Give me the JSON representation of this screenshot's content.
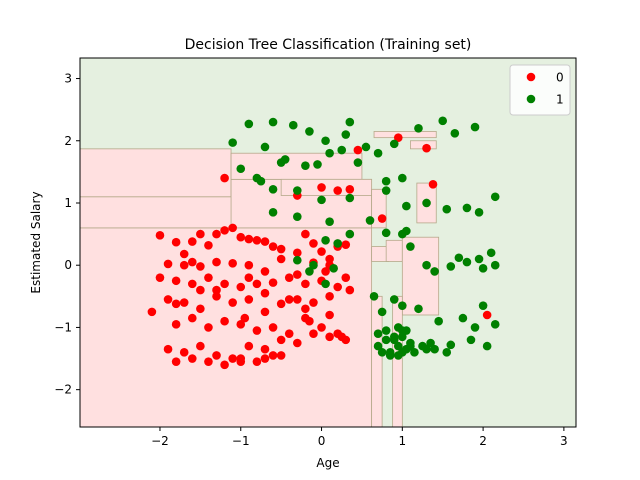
{
  "chart_data": {
    "type": "scatter",
    "title": "Decision Tree Classification (Training set)",
    "xlabel": "Age",
    "ylabel": "Estimated Salary",
    "xlim": [
      -2.99,
      3.15
    ],
    "ylim": [
      -2.6,
      3.33
    ],
    "xticks": [
      -2,
      -1,
      0,
      1,
      2,
      3
    ],
    "xtick_labels": [
      "−2",
      "−1",
      "0",
      "1",
      "2",
      "3"
    ],
    "yticks": [
      -2,
      -1,
      0,
      1,
      2,
      3
    ],
    "ytick_labels": [
      "−2",
      "−1",
      "0",
      "1",
      "2",
      "3"
    ],
    "grid": false,
    "legend_position": "top-right",
    "colors": {
      "class_0": "#ff0000",
      "class_1": "#008000",
      "region_0": "#ffe0e0",
      "region_1": "#e5f0e0",
      "boundary": "#b5a98a"
    },
    "regions_class0": [
      [
        -2.99,
        0.62,
        -2.6,
        0.6
      ],
      [
        -2.99,
        -1.1,
        0.6,
        1.1
      ],
      [
        -2.99,
        -1.12,
        1.1,
        1.87
      ],
      [
        -1.12,
        0.62,
        0.6,
        1.38
      ],
      [
        -1.12,
        0.5,
        1.38,
        1.8
      ],
      [
        -0.5,
        0.62,
        1.12,
        1.38
      ],
      [
        0.62,
        0.8,
        0.6,
        1.22
      ],
      [
        0.62,
        0.83,
        0.06,
        0.3
      ],
      [
        0.62,
        0.75,
        -2.6,
        -0.5
      ],
      [
        0.8,
        1.0,
        0.4,
        0.06
      ],
      [
        1.0,
        1.45,
        -0.8,
        0.45
      ],
      [
        0.88,
        1.0,
        -2.6,
        -0.5
      ],
      [
        1.18,
        1.42,
        0.68,
        1.32
      ],
      [
        1.1,
        1.42,
        1.87,
        2.0
      ],
      [
        0.65,
        1.42,
        2.05,
        2.15
      ]
    ],
    "series": [
      {
        "name": "0",
        "color": "#ff0000",
        "x": [
          -2.0,
          -1.8,
          -1.7,
          -1.6,
          -1.5,
          -1.4,
          -1.3,
          -1.2,
          -1.1,
          -1.0,
          -0.9,
          -0.8,
          -0.7,
          -0.6,
          -0.5,
          -0.3,
          -0.2,
          -0.1,
          0.0,
          0.1,
          0.2,
          0.3,
          -1.9,
          -1.7,
          -1.5,
          -1.3,
          -1.1,
          -0.9,
          -0.7,
          -0.5,
          -0.3,
          -0.1,
          0.1,
          0.3,
          -2.0,
          -1.8,
          -1.6,
          -1.4,
          -1.2,
          -1.0,
          -0.8,
          -0.6,
          -0.4,
          -0.2,
          0.0,
          0.2,
          -1.9,
          -1.7,
          -1.5,
          -1.3,
          -1.1,
          -0.9,
          -0.7,
          -0.5,
          -0.3,
          -0.1,
          0.1,
          -1.8,
          -1.6,
          -1.4,
          -1.2,
          -1.0,
          -0.8,
          -0.6,
          -0.4,
          -0.2,
          0.0,
          0.2,
          -1.9,
          -1.7,
          -1.5,
          -1.3,
          -1.1,
          -0.9,
          -0.7,
          -0.5,
          -1.8,
          -1.6,
          -1.4,
          -1.2,
          -1.0,
          -0.8,
          -0.6,
          -1.0,
          -0.7,
          -0.5,
          -0.3,
          -0.1,
          0.1,
          0.3,
          0.45,
          0.75,
          0.95,
          1.3,
          1.38,
          2.05,
          -0.3,
          0.0,
          0.2,
          0.35,
          -1.2,
          -1.6,
          -1.8,
          -1.5,
          -2.1,
          -1.3,
          -0.9,
          -0.2,
          0.1,
          0.25,
          -0.15,
          -0.4,
          -0.7,
          -0.95,
          0.05,
          0.35
        ],
        "y": [
          0.48,
          0.37,
          0.18,
          0.38,
          0.5,
          0.32,
          0.5,
          0.56,
          0.6,
          0.45,
          0.42,
          0.4,
          0.38,
          0.3,
          0.26,
          0.2,
          0.5,
          0.35,
          0.22,
          0.1,
          0.3,
          0.33,
          0.02,
          0.0,
          -0.02,
          0.05,
          0.03,
          0.0,
          -0.1,
          0.1,
          -0.15,
          0.04,
          0.0,
          -0.2,
          -0.2,
          -0.25,
          -0.3,
          -0.2,
          -0.3,
          -0.35,
          -0.3,
          -0.28,
          -0.2,
          -0.3,
          -0.25,
          -0.35,
          -0.55,
          -0.6,
          -0.7,
          -0.5,
          -0.6,
          -0.55,
          -0.45,
          -0.62,
          -0.55,
          -0.6,
          -0.5,
          -0.95,
          -0.85,
          -1.0,
          -0.9,
          -0.95,
          -1.05,
          -1.0,
          -1.1,
          -0.85,
          -1.0,
          -1.1,
          -1.35,
          -1.4,
          -1.3,
          -1.45,
          -1.5,
          -1.3,
          -1.35,
          -1.45,
          -1.55,
          -1.5,
          -1.55,
          -1.6,
          -1.5,
          -1.55,
          -1.45,
          -1.55,
          -1.5,
          -1.2,
          -1.25,
          -1.1,
          -1.15,
          -1.2,
          1.85,
          0.75,
          2.05,
          1.88,
          1.3,
          -0.8,
          1.12,
          1.25,
          1.2,
          1.22,
          1.4,
          0.05,
          -0.62,
          -0.4,
          -0.75,
          -0.4,
          -0.2,
          -0.7,
          -0.8,
          -1.15,
          -0.9,
          -0.55,
          -0.75,
          -0.85,
          -0.1,
          -0.4
        ]
      },
      {
        "name": "1",
        "color": "#008000",
        "x": [
          -1.1,
          -0.9,
          -0.7,
          -0.6,
          -0.35,
          -0.15,
          0.05,
          0.35,
          -0.8,
          -0.5,
          -0.2,
          0.1,
          0.3,
          0.55,
          0.9,
          -1.0,
          -0.75,
          -0.45,
          -0.05,
          0.25,
          0.45,
          0.7,
          0.8,
          1.0,
          1.2,
          1.5,
          1.65,
          1.9,
          -0.6,
          -0.3,
          0.0,
          0.35,
          0.8,
          1.05,
          1.3,
          1.55,
          1.8,
          1.95,
          2.15,
          -0.6,
          -0.3,
          0.1,
          0.6,
          0.8,
          1.0,
          1.7,
          1.95,
          2.1,
          1.05,
          1.1,
          1.3,
          1.4,
          1.6,
          1.8,
          2.0,
          2.15,
          0.65,
          0.75,
          0.9,
          1.0,
          1.2,
          1.45,
          1.75,
          2.0,
          2.15,
          0.7,
          0.8,
          0.9,
          1.0,
          1.1,
          1.25,
          1.4,
          1.55,
          1.85,
          2.05,
          0.75,
          0.85,
          0.95,
          1.05,
          1.15,
          1.35,
          1.6,
          1.9,
          0.8,
          0.9,
          0.95,
          1.0,
          1.05,
          0.7,
          0.85,
          0.95,
          1.0,
          1.1,
          1.3,
          0.05,
          0.2,
          0.35,
          -0.3,
          -0.1,
          0.15,
          -0.15,
          0.05
        ],
        "y": [
          1.97,
          2.27,
          1.9,
          2.3,
          2.25,
          2.15,
          2.0,
          2.3,
          1.4,
          1.65,
          1.6,
          1.8,
          2.1,
          1.9,
          1.95,
          1.55,
          1.35,
          1.7,
          1.62,
          1.85,
          1.65,
          1.8,
          1.35,
          1.4,
          2.2,
          2.32,
          2.12,
          2.22,
          1.22,
          1.2,
          1.05,
          1.08,
          1.2,
          0.95,
          1.0,
          0.9,
          0.92,
          0.85,
          1.1,
          0.85,
          0.78,
          0.7,
          0.72,
          0.52,
          0.5,
          0.12,
          0.1,
          0.2,
          0.55,
          0.3,
          0.0,
          -0.1,
          -0.02,
          0.05,
          -0.05,
          0.0,
          -0.5,
          -0.75,
          -0.55,
          -0.65,
          -0.7,
          -0.9,
          -0.85,
          -0.65,
          -0.95,
          -1.1,
          -1.05,
          -1.2,
          -1.15,
          -1.25,
          -1.3,
          -1.35,
          -1.4,
          -1.2,
          -1.3,
          -1.4,
          -1.45,
          -1.3,
          -1.35,
          -1.4,
          -1.25,
          -1.28,
          -1.0,
          -1.2,
          -1.15,
          -1.0,
          -1.05,
          -1.05,
          -1.3,
          -1.4,
          -1.45,
          -1.4,
          -1.3,
          -1.35,
          0.4,
          0.35,
          0.5,
          0.08,
          0.0,
          -0.05,
          -0.1,
          -0.3
        ]
      }
    ]
  }
}
